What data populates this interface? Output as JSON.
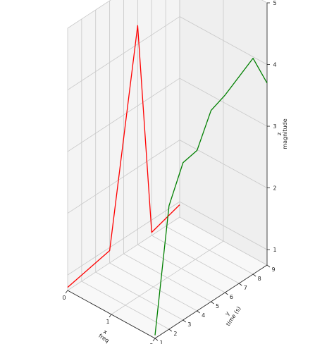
{
  "chart_data": {
    "type": "line",
    "projection": "3d",
    "grid": true,
    "axes": {
      "x": {
        "label_symbol": "x",
        "label": "freq",
        "range": [
          0,
          2
        ],
        "ticks": [
          0,
          1,
          2
        ]
      },
      "y": {
        "label_symbol": "y",
        "label": "time (s)",
        "range": [
          1,
          9
        ],
        "ticks": [
          1,
          2,
          3,
          4,
          5,
          6,
          7,
          8,
          9
        ]
      },
      "z": {
        "label_symbol": "z",
        "label": "magnitude",
        "range": [
          0.75,
          5
        ],
        "ticks": [
          1,
          2,
          3,
          4,
          5
        ]
      }
    },
    "series": [
      {
        "color": "#ff0000",
        "points": [
          {
            "x": 0,
            "y": 1,
            "z": 0.8
          },
          {
            "x": 0,
            "y": 4,
            "z": 0.95
          },
          {
            "x": 0,
            "y": 6,
            "z": 4.3
          },
          {
            "x": 0,
            "y": 7,
            "z": 0.8
          },
          {
            "x": 0,
            "y": 9,
            "z": 0.95
          }
        ]
      },
      {
        "color": "#008000",
        "points": [
          {
            "x": 2,
            "y": 1,
            "z": 0.8
          },
          {
            "x": 2,
            "y": 2,
            "z": 2.75
          },
          {
            "x": 2,
            "y": 3,
            "z": 3.3
          },
          {
            "x": 2,
            "y": 4,
            "z": 3.35
          },
          {
            "x": 2,
            "y": 5,
            "z": 3.85
          },
          {
            "x": 2,
            "y": 6,
            "z": 3.95
          },
          {
            "x": 2,
            "y": 8,
            "z": 4.25
          },
          {
            "x": 2,
            "y": 9,
            "z": 3.7
          }
        ]
      }
    ]
  }
}
